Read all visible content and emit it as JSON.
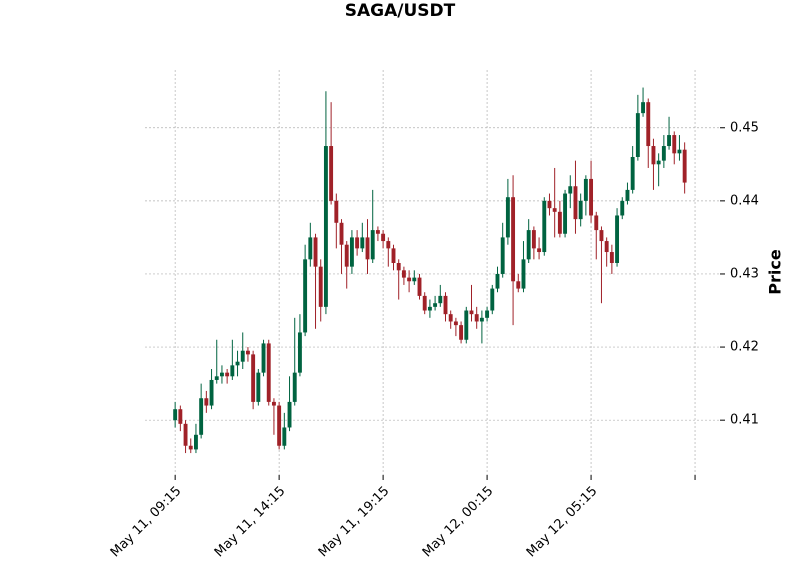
{
  "chart_data": {
    "type": "candlestick",
    "title": "SAGA/USDT",
    "y_label": "Price",
    "up_color": "#006340",
    "down_color": "#A02128",
    "grid": true,
    "xlim": [
      -5.8,
      104.8
    ],
    "xticks": [
      {
        "value": 0,
        "label": "May 11, 09:15"
      },
      {
        "value": 20,
        "label": "May 11, 14:15"
      },
      {
        "value": 40,
        "label": "May 11, 19:15"
      },
      {
        "value": 60,
        "label": "May 12, 00:15"
      },
      {
        "value": 80,
        "label": "May 12, 05:15"
      },
      {
        "value": 100,
        "label": null
      }
    ],
    "ylim": [
      0.4025,
      0.4579
    ],
    "yticks": [
      0.41,
      0.42,
      0.43,
      0.44,
      0.45
    ],
    "open": [
      0.41,
      0.4115,
      0.4095,
      0.4065,
      0.406,
      0.408,
      0.413,
      0.412,
      0.4155,
      0.416,
      0.4165,
      0.416,
      0.4175,
      0.418,
      0.4195,
      0.419,
      0.4125,
      0.4165,
      0.4205,
      0.4125,
      0.412,
      0.4065,
      0.409,
      0.4125,
      0.4165,
      0.422,
      0.432,
      0.435,
      0.431,
      0.4255,
      0.4475,
      0.44,
      0.437,
      0.434,
      0.431,
      0.435,
      0.4335,
      0.435,
      0.432,
      0.436,
      0.4355,
      0.4345,
      0.4335,
      0.4315,
      0.4305,
      0.4295,
      0.429,
      0.4295,
      0.427,
      0.425,
      0.4255,
      0.426,
      0.427,
      0.4245,
      0.4235,
      0.423,
      0.421,
      0.425,
      0.4245,
      0.4235,
      0.424,
      0.425,
      0.428,
      0.43,
      0.435,
      0.4405,
      0.429,
      0.428,
      0.432,
      0.436,
      0.4335,
      0.433,
      0.44,
      0.439,
      0.4385,
      0.4355,
      0.441,
      0.442,
      0.4375,
      0.44,
      0.443,
      0.438,
      0.436,
      0.4345,
      0.433,
      0.4315,
      0.438,
      0.44,
      0.4415,
      0.446,
      0.452,
      0.4535,
      0.4475,
      0.445,
      0.4455,
      0.4475,
      0.449,
      0.4465,
      0.447
    ],
    "high": [
      0.4125,
      0.412,
      0.41,
      0.4075,
      0.4095,
      0.415,
      0.414,
      0.417,
      0.421,
      0.4175,
      0.417,
      0.421,
      0.4195,
      0.422,
      0.42,
      0.4195,
      0.417,
      0.421,
      0.421,
      0.413,
      0.4125,
      0.411,
      0.416,
      0.424,
      0.4245,
      0.434,
      0.437,
      0.4355,
      0.432,
      0.455,
      0.4535,
      0.441,
      0.4375,
      0.4345,
      0.436,
      0.436,
      0.437,
      0.4375,
      0.4415,
      0.4365,
      0.436,
      0.435,
      0.434,
      0.432,
      0.431,
      0.4305,
      0.4305,
      0.43,
      0.4275,
      0.4265,
      0.427,
      0.4285,
      0.4275,
      0.425,
      0.424,
      0.4235,
      0.4255,
      0.4285,
      0.4255,
      0.425,
      0.4255,
      0.4285,
      0.431,
      0.437,
      0.443,
      0.4435,
      0.43,
      0.4345,
      0.4375,
      0.4365,
      0.435,
      0.4405,
      0.441,
      0.4445,
      0.44,
      0.4415,
      0.4435,
      0.4455,
      0.441,
      0.4435,
      0.4455,
      0.4385,
      0.4365,
      0.435,
      0.434,
      0.439,
      0.4405,
      0.4425,
      0.4475,
      0.4545,
      0.4555,
      0.454,
      0.4485,
      0.4465,
      0.449,
      0.4515,
      0.4495,
      0.449,
      0.448
    ],
    "low": [
      0.409,
      0.4085,
      0.4055,
      0.4055,
      0.4055,
      0.4075,
      0.411,
      0.4115,
      0.415,
      0.415,
      0.415,
      0.4155,
      0.416,
      0.417,
      0.418,
      0.4115,
      0.412,
      0.416,
      0.412,
      0.408,
      0.406,
      0.406,
      0.4085,
      0.412,
      0.416,
      0.4215,
      0.431,
      0.4225,
      0.4235,
      0.4245,
      0.4395,
      0.4335,
      0.43,
      0.428,
      0.43,
      0.4325,
      0.433,
      0.43,
      0.4315,
      0.4345,
      0.4335,
      0.431,
      0.4305,
      0.4265,
      0.4285,
      0.4275,
      0.4285,
      0.4265,
      0.4245,
      0.424,
      0.425,
      0.4255,
      0.4235,
      0.4225,
      0.4215,
      0.4205,
      0.4205,
      0.4235,
      0.4225,
      0.4205,
      0.4235,
      0.4245,
      0.4275,
      0.4295,
      0.434,
      0.423,
      0.4275,
      0.4275,
      0.4315,
      0.432,
      0.432,
      0.4325,
      0.438,
      0.435,
      0.435,
      0.435,
      0.439,
      0.4355,
      0.4365,
      0.438,
      0.437,
      0.432,
      0.426,
      0.431,
      0.43,
      0.431,
      0.4375,
      0.4395,
      0.441,
      0.4455,
      0.4515,
      0.4445,
      0.4415,
      0.442,
      0.4445,
      0.447,
      0.445,
      0.4455,
      0.441
    ],
    "close": [
      0.4115,
      0.4095,
      0.4065,
      0.406,
      0.408,
      0.413,
      0.412,
      0.4155,
      0.416,
      0.4165,
      0.416,
      0.4175,
      0.418,
      0.4195,
      0.419,
      0.4125,
      0.4165,
      0.4205,
      0.4125,
      0.412,
      0.4065,
      0.409,
      0.4125,
      0.4165,
      0.422,
      0.432,
      0.435,
      0.431,
      0.4255,
      0.4475,
      0.44,
      0.437,
      0.434,
      0.431,
      0.435,
      0.4335,
      0.435,
      0.432,
      0.436,
      0.4355,
      0.4345,
      0.4335,
      0.4315,
      0.4305,
      0.4295,
      0.429,
      0.4295,
      0.427,
      0.425,
      0.4255,
      0.426,
      0.427,
      0.4245,
      0.4235,
      0.423,
      0.421,
      0.425,
      0.4245,
      0.4235,
      0.424,
      0.425,
      0.428,
      0.43,
      0.435,
      0.4405,
      0.429,
      0.428,
      0.432,
      0.436,
      0.4335,
      0.433,
      0.44,
      0.439,
      0.4385,
      0.4355,
      0.441,
      0.442,
      0.4375,
      0.44,
      0.443,
      0.438,
      0.436,
      0.4345,
      0.433,
      0.4315,
      0.438,
      0.44,
      0.4415,
      0.446,
      0.452,
      0.4535,
      0.4475,
      0.445,
      0.4455,
      0.4475,
      0.449,
      0.4465,
      0.447,
      0.4425
    ]
  }
}
